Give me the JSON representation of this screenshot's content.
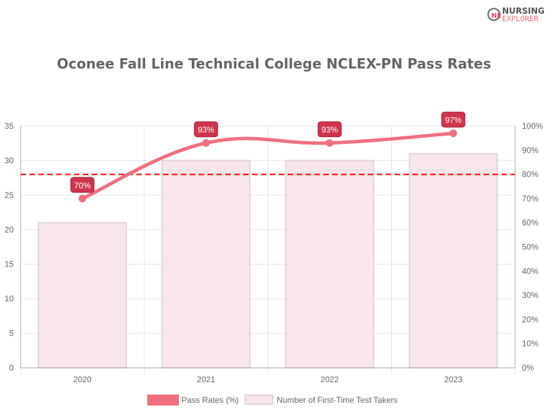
{
  "logo": {
    "line1": "NURSING",
    "line2": "EXPLORER"
  },
  "chart_data": {
    "type": "bar+line",
    "title": "Oconee Fall Line Technical College NCLEX-PN Pass Rates",
    "categories": [
      "2020",
      "2021",
      "2022",
      "2023"
    ],
    "series": [
      {
        "name": "Pass Rates (%)",
        "type": "line",
        "axis": "right",
        "values": [
          70,
          93,
          93,
          97
        ],
        "labels": [
          "70%",
          "93%",
          "93%",
          "97%"
        ],
        "color": "#f07080"
      },
      {
        "name": "Number of First-Time Test Takers",
        "type": "bar",
        "axis": "left",
        "values": [
          21,
          30,
          30,
          31
        ],
        "color": "#f8e6ea"
      }
    ],
    "left_axis": {
      "range": [
        0,
        35
      ],
      "ticks": [
        "0",
        "5",
        "10",
        "15",
        "20",
        "25",
        "30",
        "35"
      ]
    },
    "right_axis": {
      "range": [
        0,
        100
      ],
      "ticks": [
        "0%",
        "10%",
        "20%",
        "30%",
        "40%",
        "50%",
        "60%",
        "70%",
        "80%",
        "90%",
        "100%"
      ]
    },
    "reference_line": {
      "value": 80,
      "axis": "right",
      "style": "dashed",
      "color": "#ff0000"
    },
    "grid": true,
    "legend": "bottom"
  }
}
